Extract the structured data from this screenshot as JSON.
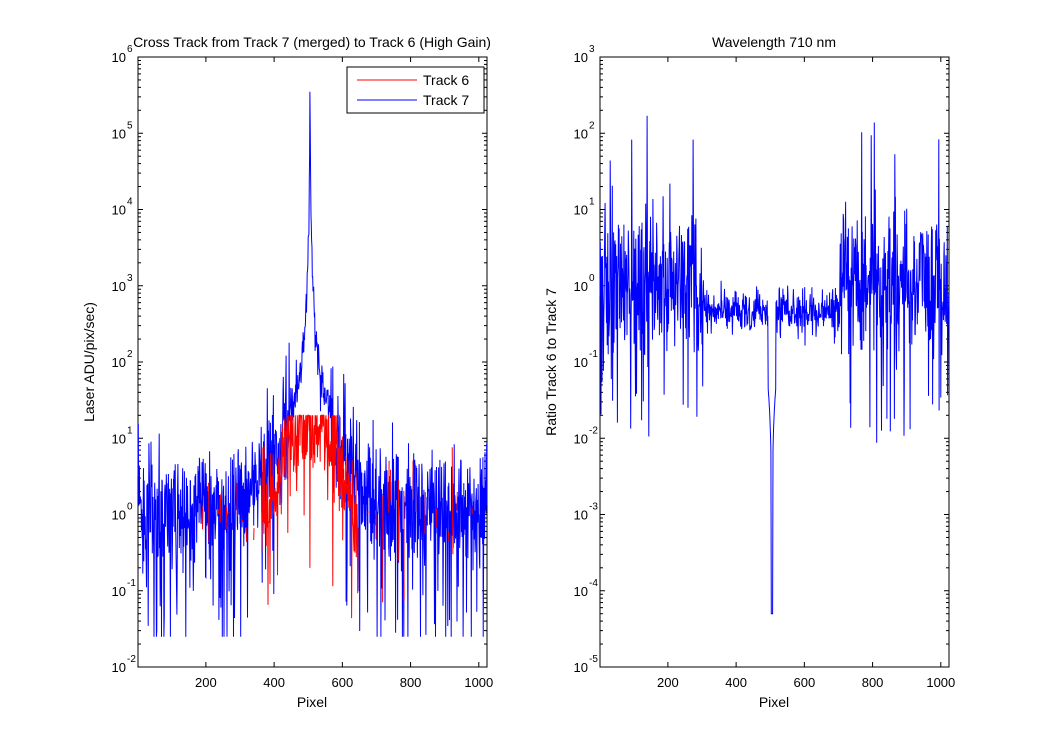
{
  "chart_data": [
    {
      "type": "line",
      "title": "Cross Track from Track 7 (merged) to Track 6 (High Gain)",
      "xlabel": "Pixel",
      "ylabel": "Laser ADU/pix/sec)",
      "xlim": [
        1,
        1024
      ],
      "ylim": [
        0.01,
        1000000
      ],
      "yscale": "log",
      "x_ticks": [
        "200",
        "400",
        "600",
        "800",
        "1000"
      ],
      "y_ticks": [
        {
          "base": "10",
          "exp": "-2"
        },
        {
          "base": "10",
          "exp": "-1"
        },
        {
          "base": "10",
          "exp": "0"
        },
        {
          "base": "10",
          "exp": "1"
        },
        {
          "base": "10",
          "exp": "2"
        },
        {
          "base": "10",
          "exp": "3"
        },
        {
          "base": "10",
          "exp": "4"
        },
        {
          "base": "10",
          "exp": "5"
        },
        {
          "base": "10",
          "exp": "6"
        }
      ],
      "legend_position": "top-right",
      "series": [
        {
          "name": "Track 6",
          "color": "#ff0000",
          "summary": {
            "x": [
              300,
              380,
              420,
              460,
              500,
              540,
              580,
              620,
              660
            ],
            "y": [
              0.9,
              3,
              6,
              10,
              15,
              12,
              6,
              3,
              0.9
            ]
          }
        },
        {
          "name": "Track 7",
          "color": "#0000ff",
          "summary": {
            "x": [
              1,
              300,
              380,
              440,
              480,
              500,
              505,
              510,
              530,
              580,
              660,
              1024
            ],
            "y": [
              1,
              1.5,
              5,
              15,
              40,
              1000,
              350000,
              1000,
              40,
              12,
              3,
              1
            ]
          }
        }
      ]
    },
    {
      "type": "line",
      "title": "Wavelength 710 nm",
      "xlabel": "Pixel",
      "ylabel": "Ratio Track 6 to Track 7",
      "xlim": [
        1,
        1024
      ],
      "ylim": [
        1e-05,
        1000
      ],
      "yscale": "log",
      "x_ticks": [
        "200",
        "400",
        "600",
        "800",
        "1000"
      ],
      "y_ticks": [
        {
          "base": "10",
          "exp": "-5"
        },
        {
          "base": "10",
          "exp": "-4"
        },
        {
          "base": "10",
          "exp": "-3"
        },
        {
          "base": "10",
          "exp": "-2"
        },
        {
          "base": "10",
          "exp": "-1"
        },
        {
          "base": "10",
          "exp": "0"
        },
        {
          "base": "10",
          "exp": "1"
        },
        {
          "base": "10",
          "exp": "2"
        },
        {
          "base": "10",
          "exp": "3"
        }
      ],
      "series": [
        {
          "color": "#0000ff",
          "summary": {
            "x": [
              1,
              350,
              420,
              480,
              500,
              505,
              510,
              530,
              600,
              700,
              1024
            ],
            "y": [
              1,
              1,
              0.5,
              0.4,
              0.05,
              5e-05,
              0.05,
              0.3,
              0.5,
              1,
              1
            ]
          }
        }
      ]
    }
  ]
}
